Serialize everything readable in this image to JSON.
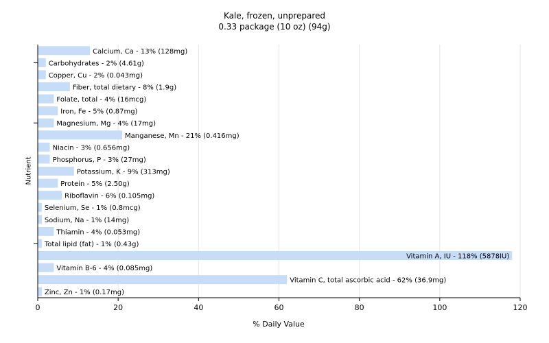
{
  "chart_data": {
    "type": "bar",
    "orientation": "horizontal",
    "title": "Kale, frozen, unprepared",
    "subtitle": "0.33 package (10 oz) (94g)",
    "xlabel": "% Daily Value",
    "ylabel": "Nutrient",
    "xlim": [
      0,
      120
    ],
    "xticks": [
      0,
      20,
      40,
      60,
      80,
      100,
      120
    ],
    "grid": true,
    "bar_color": "#c6dcf7",
    "categories": [
      "Calcium, Ca",
      "Carbohydrates",
      "Copper, Cu",
      "Fiber, total dietary",
      "Folate, total",
      "Iron, Fe",
      "Magnesium, Mg",
      "Manganese, Mn",
      "Niacin",
      "Phosphorus, P",
      "Potassium, K",
      "Protein",
      "Riboflavin",
      "Selenium, Se",
      "Sodium, Na",
      "Thiamin",
      "Total lipid (fat)",
      "Vitamin A, IU",
      "Vitamin B-6",
      "Vitamin C, total ascorbic acid",
      "Zinc, Zn"
    ],
    "values": [
      13,
      2,
      2,
      8,
      4,
      5,
      4,
      21,
      3,
      3,
      9,
      5,
      6,
      1,
      1,
      4,
      1,
      118,
      4,
      62,
      1
    ],
    "labels": [
      "Calcium, Ca - 13% (128mg)",
      "Carbohydrates - 2% (4.61g)",
      "Copper, Cu - 2% (0.043mg)",
      "Fiber, total dietary - 8% (1.9g)",
      "Folate, total - 4% (16mcg)",
      "Iron, Fe - 5% (0.87mg)",
      "Magnesium, Mg - 4% (17mg)",
      "Manganese, Mn - 21% (0.416mg)",
      "Niacin - 3% (0.656mg)",
      "Phosphorus, P - 3% (27mg)",
      "Potassium, K - 9% (313mg)",
      "Protein - 5% (2.50g)",
      "Riboflavin - 6% (0.105mg)",
      "Selenium, Se - 1% (0.8mcg)",
      "Sodium, Na - 1% (14mg)",
      "Thiamin - 4% (0.053mg)",
      "Total lipid (fat) - 1% (0.43g)",
      "Vitamin A, IU - 118% (5878IU)",
      "Vitamin B-6 - 4% (0.085mg)",
      "Vitamin C, total ascorbic acid - 62% (36.9mg)",
      "Zinc, Zn - 1% (0.17mg)"
    ]
  }
}
